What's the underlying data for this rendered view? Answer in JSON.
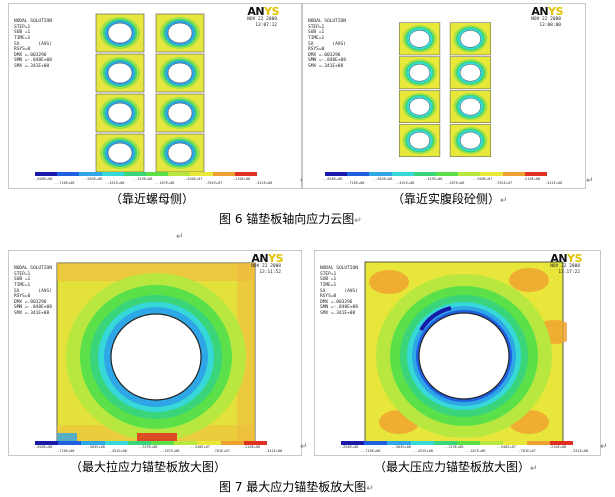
{
  "ansys_header": {
    "lines": [
      "NODAL SOLUTION",
      "STEP=1",
      "SUB =1",
      "TIME=1",
      "SX       (AVG)",
      "RSYS=0",
      "DMX =.003296",
      "SMN =-.848E+08",
      "SMX =.341E+08"
    ],
    "logo_main": "AN",
    "logo_tail": "YS"
  },
  "panels": [
    {
      "date": "NOV 22 2008",
      "time": "13:07:12"
    },
    {
      "date": "NOV 22 2008",
      "time": "13:08:00"
    },
    {
      "date": "NOV 22 2008",
      "time": "13:11:52"
    },
    {
      "date": "NOV 22 2008",
      "time": "13:17:22"
    }
  ],
  "colorbar": {
    "colors": [
      "#1a1aa8",
      "#1f5fe0",
      "#2fa6e6",
      "#36d8d8",
      "#3ad47a",
      "#5be04a",
      "#b8e840",
      "#e8e838",
      "#f0a030",
      "#e03020"
    ],
    "ticks_top": [
      "-.848E+08",
      "-.583E+08",
      "-.319E+08",
      "-.540E+07",
      ".210E+08"
    ],
    "ticks_bottom": [
      "-.716E+08",
      "-.451E+08",
      "-.187E+08",
      ".781E+07",
      ".341E+08"
    ]
  },
  "captions": {
    "fig6_left": "（靠近螺母侧）",
    "fig6_right": "（靠近实腹段砼侧）",
    "fig6_title": "图 6  锚垫板轴向应力云图",
    "fig7_left": "（最大拉应力锚垫板放大图）",
    "fig7_right": "（最大压应力锚垫板放大图）",
    "fig7_title": "图 7  最大应力锚垫板放大图",
    "return_mark": "↵"
  }
}
